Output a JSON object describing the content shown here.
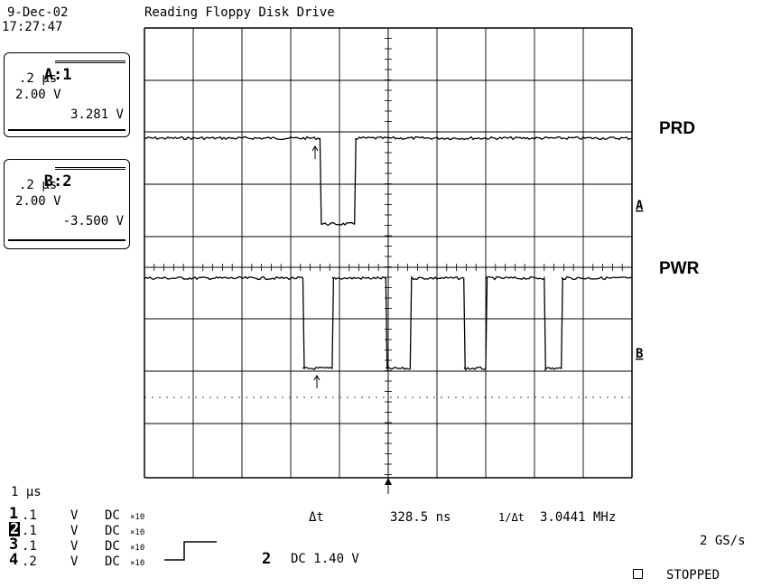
{
  "header": {
    "date": "9-Dec-02",
    "time": "17:27:47",
    "title": "Reading Floppy Disk Drive"
  },
  "channel_boxes": [
    {
      "id": "A:1",
      "timebase": ".2 μs",
      "volts": "2.00 V",
      "reading": "3.281 V"
    },
    {
      "id": "B:2",
      "timebase": ".2 μs",
      "volts": "2.00 V",
      "reading": "-3.500 V"
    }
  ],
  "trace_labels": {
    "top": "PRD",
    "bottom": "PWR"
  },
  "markers": {
    "a": "A",
    "b": "B"
  },
  "timebase": "1 μs",
  "channels": [
    {
      "num": "1",
      "scale": ".1",
      "unit": "V",
      "coupling": "DC",
      "probe": "×10"
    },
    {
      "num": "2",
      "scale": ".1",
      "unit": "V",
      "coupling": "DC",
      "probe": "×10"
    },
    {
      "num": "3",
      "scale": ".1",
      "unit": "V",
      "coupling": "DC",
      "probe": "×10"
    },
    {
      "num": "4",
      "scale": ".2",
      "unit": "V",
      "coupling": "DC",
      "probe": "×10"
    }
  ],
  "measurement": {
    "delta_t_label": "Δt",
    "delta_t_value": "328.5 ns",
    "inv_label": "1/Δt",
    "freq_value": "3.0441 MHz"
  },
  "trigger": {
    "channel": "2",
    "text": "DC 1.40 V"
  },
  "sample_rate": "2 GS/s",
  "status": "STOPPED",
  "waveforms": {
    "PRD": {
      "low_start_us": -1.4,
      "low_end_us": -0.69
    },
    "PWR": {
      "pulses_us": [
        [
          -1.75,
          -1.15
        ],
        [
          -0.05,
          0.45
        ],
        [
          1.55,
          2.0
        ],
        [
          3.2,
          3.55
        ]
      ]
    }
  }
}
